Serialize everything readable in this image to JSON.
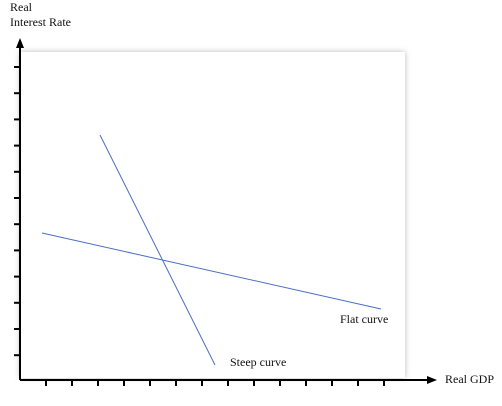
{
  "y_axis": {
    "label_lines": [
      "Real",
      "Interest Rate"
    ]
  },
  "x_axis": {
    "label": "Real GDP"
  },
  "curves": [
    {
      "label": "Flat curve"
    },
    {
      "label": "Steep curve"
    }
  ]
}
